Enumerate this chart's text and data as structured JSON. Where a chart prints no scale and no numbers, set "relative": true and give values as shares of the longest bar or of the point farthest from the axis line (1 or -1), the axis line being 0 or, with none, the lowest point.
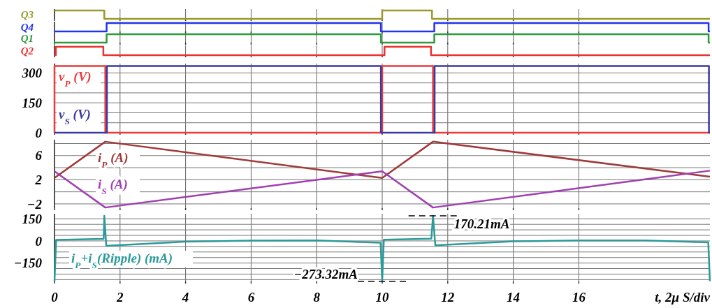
{
  "chart_data": [
    {
      "type": "step",
      "relative": true,
      "grid": "x",
      "tick_labels": false,
      "xlim": [
        0,
        20
      ],
      "xticks": [
        0,
        2,
        4,
        6,
        8,
        10,
        12,
        14,
        16
      ],
      "series": [
        {
          "name": "Q3",
          "color": "#9a9a2a",
          "x": [
            0,
            1.52,
            10,
            11.52,
            20
          ],
          "values": [
            1,
            0,
            1,
            0,
            0
          ]
        }
      ]
    },
    {
      "type": "step",
      "relative": true,
      "grid": "x",
      "tick_labels": false,
      "xlim": [
        0,
        20
      ],
      "xticks": [
        0,
        2,
        4,
        6,
        8,
        10,
        12,
        14,
        16
      ],
      "series": [
        {
          "name": "Q4",
          "color": "#2233ee",
          "x": [
            0,
            1.59,
            9.96,
            11.59,
            19.96,
            20
          ],
          "values": [
            0,
            1,
            0,
            1,
            0,
            0
          ]
        }
      ]
    },
    {
      "type": "step",
      "relative": true,
      "grid": "x",
      "tick_labels": false,
      "xlim": [
        0,
        20
      ],
      "xticks": [
        0,
        2,
        4,
        6,
        8,
        10,
        12,
        14,
        16
      ],
      "series": [
        {
          "name": "Q1",
          "color": "#2a9a3a",
          "x": [
            0,
            1.59,
            9.96,
            11.59,
            19.96,
            20
          ],
          "values": [
            0,
            1,
            0,
            1,
            0,
            0
          ]
        }
      ]
    },
    {
      "type": "step",
      "relative": true,
      "grid": "x",
      "tick_labels": false,
      "xlim": [
        0,
        20
      ],
      "xticks": [
        0,
        2,
        4,
        6,
        8,
        10,
        12,
        14,
        16
      ],
      "series": [
        {
          "name": "Q2",
          "color": "#ee3030",
          "x": [
            0,
            0.04,
            1.49,
            10.07,
            11.49,
            20
          ],
          "values": [
            0,
            1,
            0,
            1,
            0,
            0
          ]
        }
      ]
    },
    {
      "type": "step",
      "grid": true,
      "tick_labels": "y",
      "xlim": [
        0,
        20
      ],
      "xticks": [
        0,
        2,
        4,
        6,
        8,
        10,
        12,
        14,
        16
      ],
      "ylim": [
        0,
        340
      ],
      "yticks": [
        0,
        {
          "value": 50,
          "label": null
        },
        {
          "value": 100,
          "label": null
        },
        150,
        {
          "value": 200,
          "label": null
        },
        {
          "value": 250,
          "label": null
        },
        300
      ],
      "series": [
        {
          "name": "v$_{P}$ (V)",
          "color": "#f03838",
          "x": [
            0,
            0,
            1.55,
            10,
            11.55,
            20
          ],
          "values": [
            0,
            335,
            0,
            335,
            0,
            0
          ]
        },
        {
          "name": "v$_{S}$ (V)",
          "color": "#3a3aa0",
          "x": [
            0,
            1.6,
            9.96,
            11.6,
            19.97,
            20
          ],
          "values": [
            0,
            335,
            0,
            335,
            0,
            0
          ]
        }
      ]
    },
    {
      "type": "line",
      "grid": true,
      "tick_labels": "y",
      "xlim": [
        0,
        20
      ],
      "xticks": [
        0,
        2,
        4,
        6,
        8,
        10,
        12,
        14,
        16
      ],
      "ylim": [
        -2.7,
        8.4
      ],
      "yticks": [
        -2,
        {
          "value": 0,
          "label": null
        },
        2,
        {
          "value": 4,
          "label": null
        },
        6,
        {
          "value": 8,
          "label": null
        }
      ],
      "series": [
        {
          "name": "i$_{P}$ (A)",
          "color": "#a03a3a",
          "x": [
            0,
            1.55,
            10,
            11.55,
            20
          ],
          "values": [
            2.3,
            8.3,
            2.3,
            8.3,
            2.5
          ]
        },
        {
          "name": "i$_{S}$ (A)",
          "color": "#a040b0",
          "x": [
            0,
            1.55,
            10,
            11.55,
            20
          ],
          "values": [
            3.4,
            -2.6,
            3.4,
            -2.6,
            3.5
          ]
        }
      ]
    },
    {
      "type": "line",
      "grid": true,
      "xlabel": "t, 2μ S/div",
      "xlim": [
        0,
        20
      ],
      "xticks": [
        0,
        2,
        4,
        6,
        8,
        10,
        12,
        14,
        16
      ],
      "ylim": [
        -275,
        175
      ],
      "yticks": [
        {
          "value": -262.5,
          "label": null
        },
        {
          "value": -225,
          "label": null
        },
        {
          "value": -187.5,
          "label": null
        },
        -150,
        {
          "value": -112.5,
          "label": null
        },
        {
          "value": -75,
          "label": null
        },
        {
          "value": -37.5,
          "label": null
        },
        0,
        {
          "value": 37.5,
          "label": null
        },
        {
          "value": 75,
          "label": null
        },
        {
          "value": 112.5,
          "label": null
        },
        150
      ],
      "series": [
        {
          "name": "i$_{P}$+i$_{S}$(Ripple) (mA)",
          "color": "#2a9a9a",
          "x": [
            0,
            0.05,
            1.5,
            1.52,
            1.58,
            4,
            6,
            8,
            9.95,
            10,
            10.05,
            11.5,
            11.55,
            11.62,
            14,
            16,
            18,
            19.95,
            20
          ],
          "values": [
            -273.32,
            7,
            14,
            170.21,
            -33,
            -5,
            2,
            3,
            -12,
            -273.32,
            8,
            15,
            170.21,
            -30,
            -3,
            3,
            3,
            -10,
            -273.32
          ]
        }
      ],
      "annotations": [
        {
          "text": "170.21mA",
          "x": 11.55,
          "y": 170.21
        },
        {
          "text": "−273.32mA",
          "x": 10,
          "y": -273.32
        }
      ]
    }
  ]
}
